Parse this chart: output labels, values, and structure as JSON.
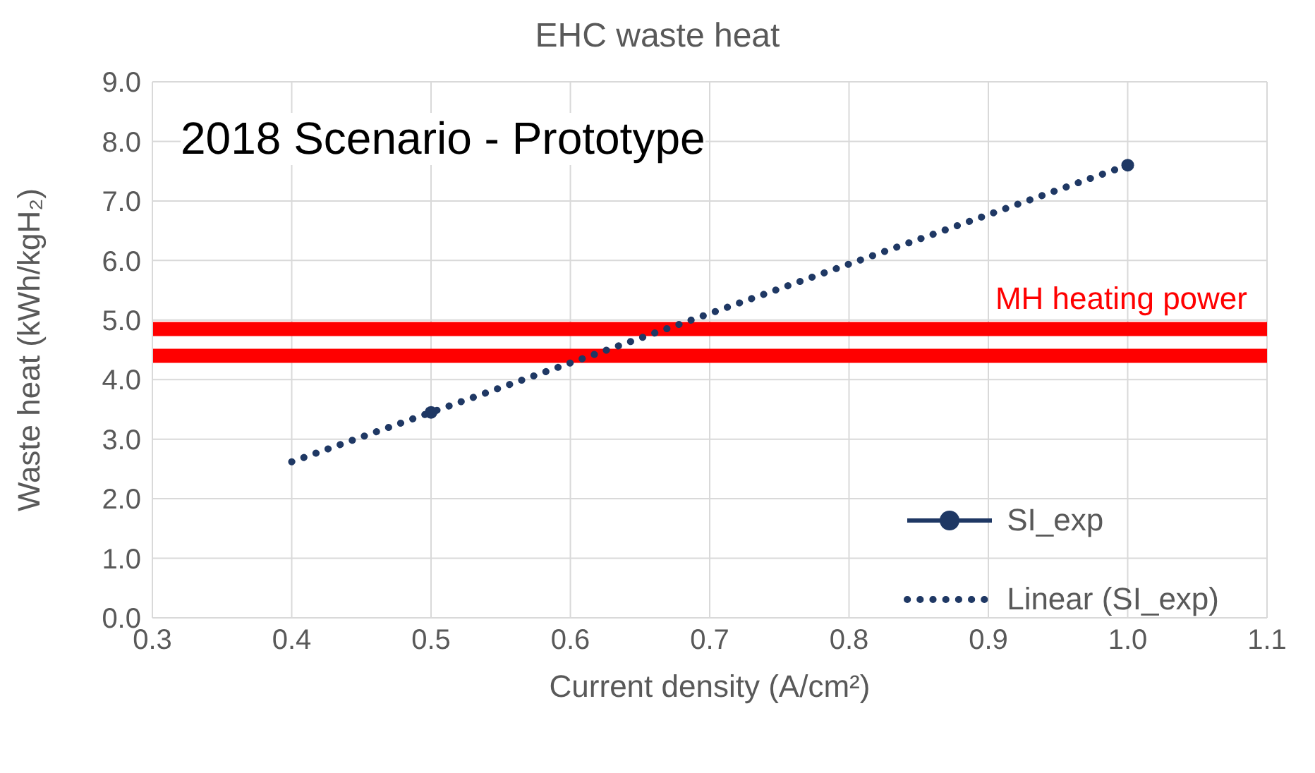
{
  "chart_data": {
    "type": "scatter",
    "title": "EHC waste heat",
    "xlabel": "Current density (A/cm²)",
    "ylabel": "Waste heat (kWh/kgH₂)",
    "annotations": [
      "2018 Scenario - Prototype"
    ],
    "series": [
      {
        "name": "SI_exp",
        "color": "#1f3864",
        "x": [
          0.5,
          1.0
        ],
        "values": [
          3.45,
          7.6
        ]
      },
      {
        "name": "Linear (SI_exp)",
        "type": "line",
        "color": "#1f3864",
        "line_style": "dotted",
        "marker": "none",
        "x": [
          0.4,
          1.0
        ],
        "values": [
          2.62,
          7.6
        ]
      }
    ],
    "ref_lines": [
      {
        "axis": "y",
        "value": 4.85,
        "label": "MH heating power",
        "color": "#ff0000"
      },
      {
        "axis": "y",
        "value": 4.4,
        "color": "#ff0000"
      }
    ],
    "marker": "circle",
    "grid": true,
    "legend": "bottom right",
    "xlim": [
      0.3,
      1.1
    ],
    "xticks": [
      0.3,
      0.4,
      0.5,
      0.6,
      0.7,
      0.8,
      0.9,
      {
        "value": 1,
        "label": "1.0"
      },
      1.1
    ],
    "ylim": [
      0,
      9
    ],
    "yticks": [
      {
        "value": 0,
        "label": "0.0"
      },
      {
        "value": 1,
        "label": "1.0"
      },
      {
        "value": 2,
        "label": "2.0"
      },
      {
        "value": 3,
        "label": "3.0"
      },
      {
        "value": 4,
        "label": "4.0"
      },
      {
        "value": 5,
        "label": "5.0"
      },
      {
        "value": 6,
        "label": "6.0"
      },
      {
        "value": 7,
        "label": "7.0"
      },
      {
        "value": 8,
        "label": "8.0"
      },
      {
        "value": 9,
        "label": "9.0"
      }
    ]
  }
}
